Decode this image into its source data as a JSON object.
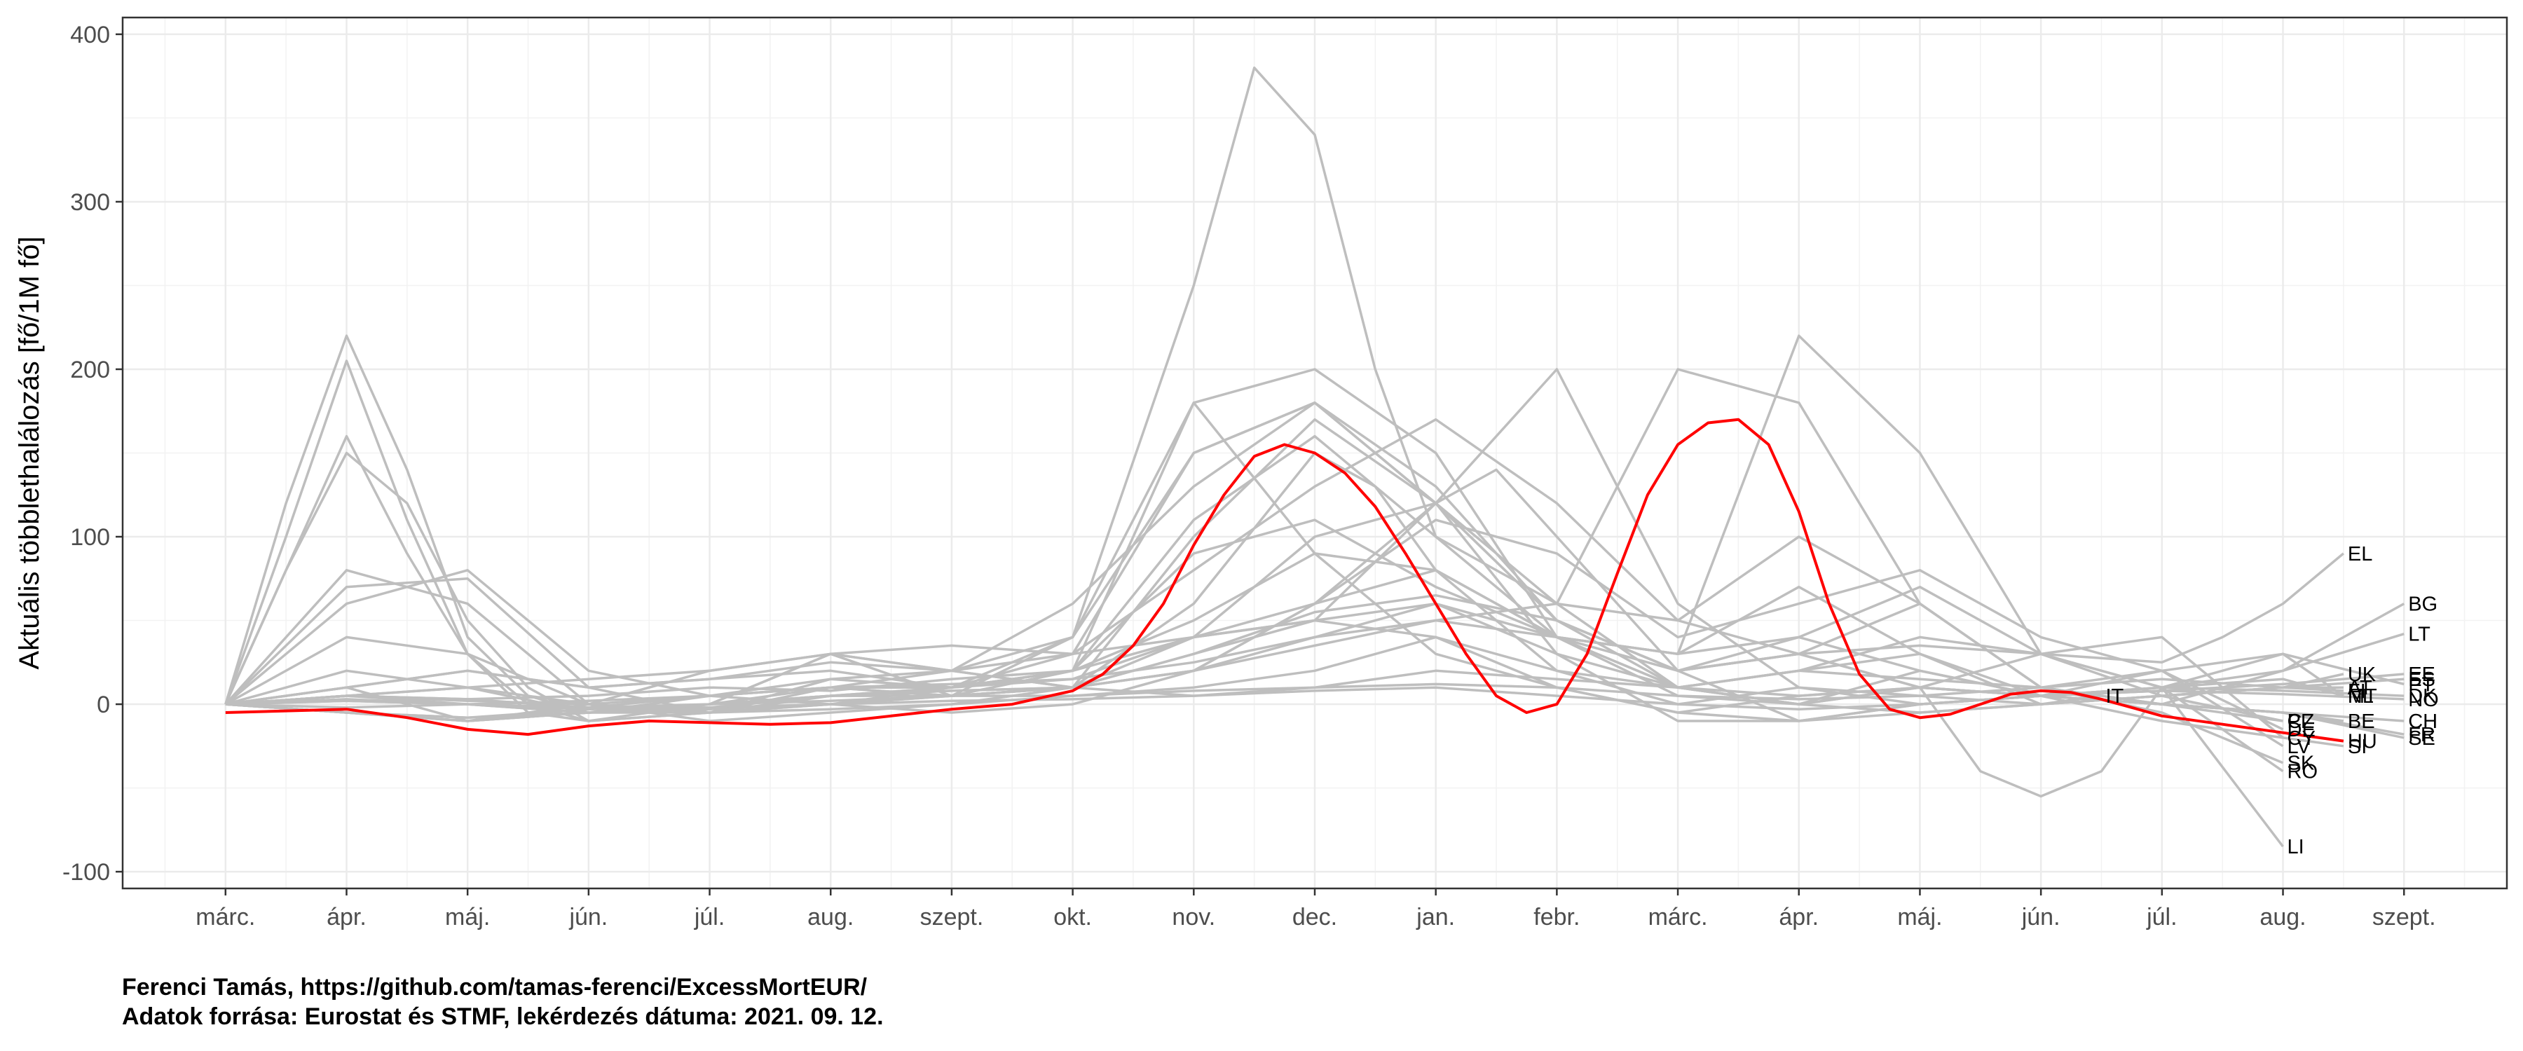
{
  "chart_data": {
    "type": "line",
    "title": "",
    "xlabel": "",
    "ylabel": "Aktuális többlethalálozás [fő/1M fő]",
    "ylim": [
      -110,
      410
    ],
    "y_ticks": [
      400,
      300,
      200,
      100,
      0,
      -100
    ],
    "x_ticks": [
      "márc.",
      "ápr.",
      "máj.",
      "jún.",
      "júl.",
      "aug.",
      "szept.",
      "okt.",
      "nov.",
      "dec.",
      "jan.",
      "febr.",
      "márc.",
      "ápr.",
      "máj.",
      "jún.",
      "júl.",
      "aug.",
      "szept."
    ],
    "xlim": [
      -0.85,
      18.85
    ],
    "grid": true,
    "highlight_color": "#ff0000",
    "background_color": "#bebebe",
    "highlight": {
      "name": "HU",
      "x": [
        0,
        0.5,
        1,
        1.5,
        2,
        2.5,
        3,
        3.5,
        4,
        4.5,
        5,
        5.5,
        6,
        6.5,
        7,
        7.25,
        7.5,
        7.75,
        8,
        8.25,
        8.5,
        8.75,
        9,
        9.25,
        9.5,
        9.75,
        10,
        10.25,
        10.5,
        10.75,
        11,
        11.25,
        11.5,
        11.75,
        12,
        12.25,
        12.5,
        12.75,
        13,
        13.25,
        13.5,
        13.75,
        14,
        14.25,
        14.5,
        14.75,
        15,
        15.25,
        15.5,
        15.75,
        16,
        16.5,
        17,
        17.5
      ],
      "values": [
        -5,
        -4,
        -3,
        -8,
        -15,
        -18,
        -13,
        -10,
        -11,
        -12,
        -11,
        -7,
        -3,
        0,
        8,
        18,
        35,
        60,
        95,
        125,
        148,
        155,
        150,
        138,
        118,
        90,
        60,
        30,
        5,
        -5,
        0,
        30,
        78,
        125,
        155,
        168,
        170,
        155,
        115,
        60,
        18,
        -3,
        -8,
        -6,
        0,
        6,
        8,
        7,
        3,
        -2,
        -7,
        -12,
        -17,
        -22
      ],
      "label": "HU"
    },
    "series": [
      {
        "name": "EL",
        "x": [
          0,
          1,
          2,
          3,
          4,
          5,
          6,
          7,
          8,
          9,
          10,
          11,
          12,
          13,
          14,
          15,
          16,
          16.5,
          17,
          17.5
        ],
        "values": [
          0,
          5,
          3,
          -2,
          5,
          10,
          12,
          15,
          25,
          40,
          50,
          40,
          20,
          30,
          35,
          30,
          25,
          40,
          60,
          90
        ]
      },
      {
        "name": "BG",
        "x": [
          0,
          1,
          2,
          3,
          4,
          5,
          6,
          7,
          8,
          9,
          10,
          11,
          12,
          13,
          14,
          15,
          16,
          17,
          18
        ],
        "values": [
          0,
          -5,
          -8,
          -5,
          0,
          5,
          8,
          10,
          30,
          55,
          65,
          50,
          20,
          30,
          60,
          10,
          0,
          20,
          60
        ]
      },
      {
        "name": "LT",
        "x": [
          0,
          1,
          2,
          3,
          4,
          5,
          6,
          7,
          8,
          9,
          10,
          11,
          12,
          13,
          14,
          15,
          16,
          17,
          18
        ],
        "values": [
          0,
          5,
          3,
          5,
          10,
          8,
          15,
          20,
          50,
          90,
          80,
          40,
          10,
          20,
          40,
          30,
          10,
          20,
          42
        ]
      },
      {
        "name": "UK",
        "x": [
          0,
          0.5,
          1,
          1.5,
          2,
          2.5,
          3,
          4,
          5,
          6,
          7,
          8,
          9,
          10,
          10.5,
          11,
          12,
          13,
          14,
          15,
          16,
          17,
          17.5
        ],
        "values": [
          0,
          80,
          150,
          120,
          50,
          10,
          -10,
          -5,
          0,
          5,
          10,
          30,
          50,
          120,
          140,
          100,
          20,
          -10,
          -5,
          0,
          5,
          10,
          18
        ]
      },
      {
        "name": "EE",
        "x": [
          0,
          1,
          2,
          3,
          4,
          5,
          6,
          7,
          8,
          9,
          10,
          11,
          12,
          13,
          14,
          15,
          16,
          17,
          18
        ],
        "values": [
          0,
          -5,
          -8,
          -3,
          0,
          5,
          8,
          10,
          20,
          35,
          50,
          60,
          50,
          30,
          10,
          5,
          8,
          12,
          18
        ]
      },
      {
        "name": "ES",
        "x": [
          0,
          0.5,
          1,
          1.5,
          2,
          2.5,
          3,
          4,
          5,
          6,
          7,
          8,
          9,
          10,
          11,
          12,
          13,
          14,
          15,
          16,
          17,
          18
        ],
        "values": [
          0,
          120,
          220,
          140,
          40,
          5,
          -5,
          0,
          30,
          35,
          30,
          40,
          50,
          40,
          20,
          10,
          0,
          -5,
          0,
          5,
          10,
          15
        ]
      },
      {
        "name": "PT",
        "x": [
          0,
          1,
          2,
          3,
          4,
          5,
          6,
          7,
          8,
          9,
          10,
          11,
          12,
          13,
          14,
          15,
          16,
          17,
          18
        ],
        "values": [
          0,
          10,
          20,
          10,
          15,
          20,
          10,
          15,
          40,
          60,
          120,
          200,
          60,
          10,
          0,
          5,
          20,
          30,
          12
        ]
      },
      {
        "name": "AT",
        "x": [
          0,
          1,
          2,
          3,
          4,
          5,
          6,
          7,
          8,
          9,
          9.5,
          10,
          11,
          12,
          13,
          14,
          15,
          16,
          17,
          17.5
        ],
        "values": [
          0,
          5,
          2,
          0,
          5,
          10,
          5,
          10,
          60,
          150,
          130,
          80,
          20,
          0,
          10,
          5,
          0,
          5,
          10,
          10
        ]
      },
      {
        "name": "FI",
        "x": [
          0,
          1,
          2,
          3,
          4,
          5,
          6,
          7,
          8,
          9,
          10,
          11,
          12,
          13,
          14,
          15,
          16,
          17,
          17.5
        ],
        "values": [
          0,
          3,
          0,
          -2,
          0,
          2,
          5,
          5,
          8,
          10,
          12,
          10,
          5,
          3,
          5,
          10,
          15,
          10,
          8
        ]
      },
      {
        "name": "MT",
        "x": [
          0,
          1,
          2,
          3,
          4,
          5,
          6,
          7,
          8,
          9,
          10,
          11,
          12,
          13,
          14,
          15,
          16,
          17,
          17.5
        ],
        "values": [
          0,
          -5,
          -10,
          -5,
          5,
          15,
          20,
          10,
          20,
          40,
          60,
          40,
          10,
          0,
          20,
          5,
          10,
          30,
          5
        ]
      },
      {
        "name": "DK",
        "x": [
          0,
          1,
          2,
          3,
          4,
          5,
          6,
          7,
          8,
          9,
          10,
          11,
          12,
          13,
          14,
          15,
          16,
          17,
          18
        ],
        "values": [
          0,
          5,
          10,
          0,
          -5,
          -3,
          0,
          5,
          10,
          20,
          40,
          10,
          -5,
          -10,
          0,
          5,
          10,
          8,
          5
        ]
      },
      {
        "name": "NL",
        "x": [
          0,
          1,
          2,
          3,
          4,
          5,
          6,
          7,
          8,
          9,
          10,
          11,
          12,
          13,
          14,
          15,
          16,
          17,
          17.5
        ],
        "values": [
          0,
          70,
          75,
          10,
          -5,
          15,
          10,
          20,
          40,
          50,
          60,
          30,
          10,
          5,
          10,
          5,
          10,
          15,
          5
        ]
      },
      {
        "name": "NO",
        "x": [
          0,
          1,
          2,
          3,
          4,
          5,
          6,
          7,
          8,
          9,
          10,
          11,
          12,
          13,
          14,
          15,
          16,
          17,
          18
        ],
        "values": [
          0,
          2,
          0,
          -3,
          -2,
          0,
          2,
          3,
          5,
          8,
          10,
          5,
          0,
          -3,
          0,
          5,
          8,
          6,
          3
        ]
      },
      {
        "name": "BE",
        "x": [
          0,
          0.5,
          1,
          1.5,
          2,
          2.5,
          3,
          4,
          5,
          6,
          7,
          8,
          9,
          10,
          11,
          12,
          13,
          14,
          15,
          16,
          17,
          17.5
        ],
        "values": [
          0,
          100,
          205,
          110,
          30,
          -5,
          -10,
          0,
          30,
          5,
          20,
          180,
          90,
          30,
          10,
          -5,
          5,
          10,
          5,
          0,
          -5,
          -10
        ]
      },
      {
        "name": "CH",
        "x": [
          0,
          1,
          2,
          3,
          4,
          5,
          6,
          7,
          8,
          9,
          10,
          11,
          12,
          13,
          14,
          15,
          16,
          17,
          18
        ],
        "values": [
          0,
          40,
          30,
          0,
          -10,
          -5,
          0,
          10,
          100,
          170,
          120,
          30,
          -10,
          -10,
          0,
          5,
          0,
          -5,
          -10
        ]
      },
      {
        "name": "IT",
        "x": [
          0,
          0.5,
          1,
          1.5,
          2,
          2.5,
          3,
          4,
          5,
          6,
          7,
          8,
          9,
          10,
          11,
          12,
          13,
          14,
          15,
          15.5
        ],
        "values": [
          0,
          80,
          160,
          90,
          30,
          0,
          -10,
          -5,
          0,
          10,
          20,
          110,
          160,
          100,
          40,
          30,
          70,
          30,
          0,
          5
        ]
      },
      {
        "name": "CZ",
        "x": [
          0,
          1,
          2,
          3,
          4,
          5,
          6,
          7,
          8,
          8.5,
          9,
          9.5,
          10,
          11,
          12,
          13,
          14,
          15,
          16,
          17
        ],
        "values": [
          0,
          2,
          0,
          -5,
          -3,
          0,
          5,
          40,
          250,
          380,
          340,
          200,
          100,
          60,
          200,
          180,
          60,
          10,
          0,
          -10
        ]
      },
      {
        "name": "PL",
        "x": [
          0,
          1,
          2,
          3,
          4,
          5,
          6,
          7,
          8,
          9,
          10,
          11,
          12,
          13,
          14,
          15,
          16,
          17
        ],
        "values": [
          0,
          -2,
          0,
          2,
          5,
          10,
          20,
          40,
          180,
          200,
          150,
          40,
          30,
          220,
          150,
          30,
          5,
          -10
        ]
      },
      {
        "name": "DE",
        "x": [
          0,
          1,
          2,
          3,
          4,
          5,
          6,
          7,
          8,
          9,
          10,
          11,
          12,
          13,
          14,
          15,
          16,
          17
        ],
        "values": [
          0,
          20,
          10,
          -5,
          -5,
          10,
          5,
          10,
          40,
          100,
          120,
          60,
          10,
          20,
          15,
          10,
          20,
          -15
        ]
      },
      {
        "name": "CY",
        "x": [
          0,
          1,
          2,
          3,
          4,
          5,
          6,
          7,
          8,
          9,
          10,
          11,
          12,
          13,
          14,
          15,
          16,
          17
        ],
        "values": [
          0,
          10,
          20,
          10,
          15,
          25,
          20,
          10,
          5,
          10,
          20,
          15,
          10,
          0,
          10,
          30,
          40,
          -20
        ]
      },
      {
        "name": "SK",
        "x": [
          0,
          1,
          2,
          3,
          4,
          5,
          6,
          7,
          8,
          9,
          10,
          11,
          12,
          13,
          14,
          15,
          16,
          17
        ],
        "values": [
          0,
          -5,
          -10,
          -5,
          0,
          10,
          10,
          30,
          80,
          130,
          170,
          120,
          50,
          100,
          60,
          10,
          -5,
          -35
        ]
      },
      {
        "name": "RO",
        "x": [
          0,
          1,
          2,
          3,
          4,
          5,
          6,
          7,
          8,
          9,
          10,
          11,
          12,
          13,
          14,
          15,
          16,
          17
        ],
        "values": [
          0,
          5,
          10,
          15,
          20,
          30,
          20,
          60,
          130,
          180,
          120,
          50,
          20,
          40,
          70,
          30,
          10,
          -40
        ]
      },
      {
        "name": "LI",
        "x": [
          0,
          1,
          2,
          3,
          4,
          5,
          6,
          7,
          8,
          9,
          10,
          11,
          12,
          13,
          14,
          14.5,
          15,
          15.5,
          16,
          17
        ],
        "values": [
          0,
          10,
          -10,
          0,
          20,
          30,
          20,
          30,
          150,
          180,
          120,
          50,
          20,
          30,
          10,
          -40,
          -55,
          -40,
          10,
          -85
        ]
      },
      {
        "name": "SI",
        "x": [
          0,
          1,
          2,
          3,
          4,
          5,
          6,
          7,
          8,
          9,
          10,
          11,
          12,
          13,
          14,
          15,
          16,
          17,
          17.5
        ],
        "values": [
          0,
          5,
          0,
          -5,
          -2,
          5,
          10,
          40,
          150,
          180,
          130,
          50,
          10,
          20,
          30,
          5,
          -10,
          -20,
          -25
        ]
      },
      {
        "name": "FR",
        "x": [
          0,
          1,
          2,
          3,
          4,
          5,
          6,
          7,
          8,
          9,
          10,
          11,
          12,
          13,
          14,
          15,
          16,
          17,
          18
        ],
        "values": [
          0,
          80,
          60,
          0,
          -5,
          5,
          10,
          20,
          90,
          110,
          70,
          40,
          30,
          40,
          20,
          5,
          0,
          -5,
          -18
        ]
      },
      {
        "name": "SE",
        "x": [
          0,
          1,
          2,
          3,
          4,
          5,
          6,
          7,
          8,
          9,
          10,
          11,
          12,
          13,
          14,
          15,
          16,
          17,
          18
        ],
        "values": [
          0,
          60,
          80,
          20,
          5,
          0,
          -5,
          0,
          20,
          60,
          80,
          40,
          5,
          0,
          10,
          5,
          0,
          -5,
          -20
        ]
      },
      {
        "name": "LV",
        "x": [
          0,
          1,
          2,
          3,
          4,
          5,
          6,
          7,
          8,
          9,
          10,
          11,
          12,
          13,
          14,
          15,
          16,
          17
        ],
        "values": [
          0,
          -5,
          -10,
          -5,
          0,
          5,
          5,
          10,
          20,
          60,
          110,
          90,
          40,
          60,
          80,
          40,
          20,
          -25
        ]
      }
    ]
  },
  "caption": {
    "line1": "Ferenci Tamás, https://github.com/tamas-ferenci/ExcessMortEUR/",
    "line2": "Adatok forrása: Eurostat és STMF, lekérdezés dátuma: 2021. 09. 12."
  }
}
